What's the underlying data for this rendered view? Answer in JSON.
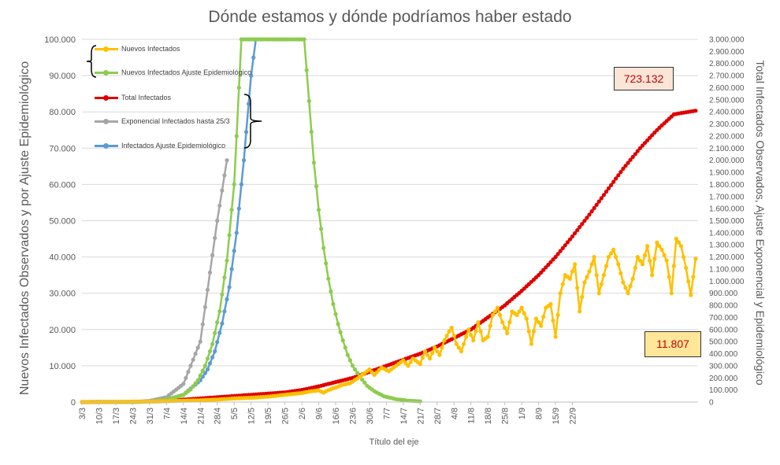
{
  "chart_data": {
    "type": "line",
    "title": "Dónde estamos y dónde podríamos haber estado",
    "xlabel": "Título del eje",
    "ylabel_left": "Nuevos Infectados Observados y por Ajuste Epidemiológico",
    "ylabel_right": "Total Infectados Observados, Ajuste Exponencial y Epidemiológico",
    "ylim_left": [
      0,
      100000
    ],
    "ylim_right": [
      0,
      3000000
    ],
    "y_ticks_left": [
      "0",
      "10.000",
      "20.000",
      "30.000",
      "40.000",
      "50.000",
      "60.000",
      "70.000",
      "80.000",
      "90.000",
      "100.000"
    ],
    "y_ticks_right": [
      "0",
      "100.000",
      "200.000",
      "300.000",
      "400.000",
      "500.000",
      "600.000",
      "700.000",
      "800.000",
      "900.000",
      "1.000.000",
      "1.100.000",
      "1.200.000",
      "1.300.000",
      "1.400.000",
      "1.500.000",
      "1.600.000",
      "1.700.000",
      "1.800.000",
      "1.900.000",
      "2.000.000",
      "2.100.000",
      "2.200.000",
      "2.300.000",
      "2.400.000",
      "2.500.000",
      "2.600.000",
      "2.700.000",
      "2.800.000",
      "2.900.000",
      "3.000.000"
    ],
    "x_tick_labels": [
      "3/3",
      "10/3",
      "17/3",
      "24/3",
      "31/3",
      "7/4",
      "14/4",
      "21/4",
      "28/4",
      "5/5",
      "12/5",
      "19/5",
      "26/5",
      "2/6",
      "9/6",
      "16/6",
      "23/6",
      "30/6",
      "7/7",
      "14/7",
      "21/7",
      "28/7",
      "4/8",
      "11/8",
      "18/8",
      "25/8",
      "1/9",
      "8/9",
      "15/9",
      "22/9"
    ],
    "grid": true,
    "legend_position": "top-left",
    "series": [
      {
        "name": "Nuevos Infectados",
        "axis": "left",
        "color": "#ffc000",
        "points": [
          [
            0,
            0
          ],
          [
            14,
            50
          ],
          [
            21,
            120
          ],
          [
            28,
            150
          ],
          [
            35,
            250
          ],
          [
            42,
            400
          ],
          [
            49,
            500
          ],
          [
            56,
            700
          ],
          [
            63,
            1000
          ],
          [
            70,
            1200
          ],
          [
            77,
            1500
          ],
          [
            84,
            2000
          ],
          [
            88,
            2300
          ],
          [
            91,
            2500
          ],
          [
            95,
            3000
          ],
          [
            98,
            3200
          ],
          [
            100,
            2600
          ],
          [
            102,
            3300
          ],
          [
            105,
            4000
          ],
          [
            108,
            4800
          ],
          [
            111,
            5200
          ],
          [
            114,
            6500
          ],
          [
            117,
            8000
          ],
          [
            119,
            9000
          ],
          [
            121,
            7500
          ],
          [
            124,
            9500
          ],
          [
            127,
            8500
          ],
          [
            130,
            10000
          ],
          [
            133,
            11500
          ],
          [
            135,
            10000
          ],
          [
            137,
            12000
          ],
          [
            140,
            10500
          ],
          [
            142,
            14000
          ],
          [
            144,
            12000
          ],
          [
            146,
            15000
          ],
          [
            148,
            13000
          ],
          [
            150,
            17000
          ],
          [
            152,
            19500
          ],
          [
            153,
            20500
          ],
          [
            155,
            16000
          ],
          [
            157,
            14000
          ],
          [
            159,
            18000
          ],
          [
            160,
            20000
          ],
          [
            162,
            17000
          ],
          [
            164,
            22000
          ],
          [
            166,
            17000
          ],
          [
            168,
            18000
          ],
          [
            170,
            24000
          ],
          [
            172,
            26000
          ],
          [
            174,
            22000
          ],
          [
            176,
            19000
          ],
          [
            178,
            25000
          ],
          [
            180,
            24000
          ],
          [
            182,
            26000
          ],
          [
            184,
            23000
          ],
          [
            186,
            16000
          ],
          [
            188,
            23000
          ],
          [
            190,
            21000
          ],
          [
            192,
            26000
          ],
          [
            194,
            27000
          ],
          [
            196,
            18000
          ],
          [
            198,
            30000
          ],
          [
            200,
            35000
          ],
          [
            202,
            34000
          ],
          [
            204,
            38000
          ],
          [
            206,
            25000
          ],
          [
            208,
            33000
          ],
          [
            210,
            36000
          ],
          [
            212,
            40000
          ],
          [
            214,
            30000
          ],
          [
            216,
            35000
          ],
          [
            218,
            40000
          ],
          [
            220,
            42000
          ],
          [
            222,
            38000
          ],
          [
            224,
            33000
          ],
          [
            226,
            30000
          ],
          [
            228,
            34000
          ],
          [
            230,
            40000
          ],
          [
            232,
            38000
          ],
          [
            234,
            43000
          ],
          [
            236,
            35000
          ],
          [
            238,
            44000
          ],
          [
            240,
            42000
          ],
          [
            242,
            39000
          ],
          [
            244,
            30000
          ],
          [
            246,
            45000
          ],
          [
            248,
            43000
          ],
          [
            250,
            37000
          ],
          [
            252,
            29500
          ],
          [
            254,
            39500
          ]
        ]
      },
      {
        "name": "Nuevos Infectados Ajuste Epidemiológico",
        "axis": "left",
        "color": "#8dcc4e",
        "points": [
          [
            0,
            0
          ],
          [
            14,
            10
          ],
          [
            21,
            30
          ],
          [
            28,
            150
          ],
          [
            35,
            600
          ],
          [
            42,
            2000
          ],
          [
            45,
            3500
          ],
          [
            48,
            6000
          ],
          [
            51,
            10000
          ],
          [
            54,
            16000
          ],
          [
            57,
            25000
          ],
          [
            60,
            39000
          ],
          [
            63,
            60000
          ],
          [
            66,
            100000
          ],
          [
            92,
            100000
          ],
          [
            94,
            83000
          ],
          [
            96,
            66000
          ],
          [
            98,
            53000
          ],
          [
            100,
            42500
          ],
          [
            102,
            34000
          ],
          [
            104,
            27000
          ],
          [
            106,
            21500
          ],
          [
            108,
            17000
          ],
          [
            110,
            13000
          ],
          [
            112,
            10000
          ],
          [
            115,
            7000
          ],
          [
            118,
            4500
          ],
          [
            121,
            3000
          ],
          [
            125,
            1600
          ],
          [
            130,
            800
          ],
          [
            135,
            400
          ],
          [
            140,
            200
          ]
        ]
      },
      {
        "name": "Total Infectados",
        "axis": "right",
        "color": "#e00000",
        "points": [
          [
            0,
            0
          ],
          [
            21,
            2000
          ],
          [
            28,
            5000
          ],
          [
            35,
            8000
          ],
          [
            42,
            20000
          ],
          [
            49,
            30000
          ],
          [
            56,
            40000
          ],
          [
            63,
            50000
          ],
          [
            70,
            60000
          ],
          [
            77,
            70000
          ],
          [
            84,
            80000
          ],
          [
            91,
            100000
          ],
          [
            98,
            130000
          ],
          [
            105,
            165000
          ],
          [
            112,
            200000
          ],
          [
            119,
            250000
          ],
          [
            126,
            300000
          ],
          [
            133,
            350000
          ],
          [
            140,
            400000
          ],
          [
            147,
            460000
          ],
          [
            154,
            530000
          ],
          [
            161,
            600000
          ],
          [
            168,
            700000
          ],
          [
            175,
            800000
          ],
          [
            182,
            920000
          ],
          [
            189,
            1050000
          ],
          [
            196,
            1200000
          ],
          [
            203,
            1370000
          ],
          [
            210,
            1550000
          ],
          [
            217,
            1740000
          ],
          [
            224,
            1930000
          ],
          [
            231,
            2100000
          ],
          [
            238,
            2250000
          ],
          [
            245,
            2380000
          ],
          [
            254,
            2410000
          ]
        ]
      },
      {
        "name": "Exponencial Infectados hasta 25/3",
        "axis": "right",
        "color": "#a6a6a6",
        "points": [
          [
            0,
            0
          ],
          [
            21,
            0
          ],
          [
            28,
            10000
          ],
          [
            35,
            40000
          ],
          [
            42,
            150000
          ],
          [
            49,
            500000
          ],
          [
            56,
            1500000
          ],
          [
            60,
            2000000
          ]
        ]
      },
      {
        "name": "Infectados Ajuste Epidemiológico",
        "axis": "right",
        "color": "#5b9bd5",
        "points": [
          [
            0,
            0
          ],
          [
            21,
            1000
          ],
          [
            28,
            5000
          ],
          [
            35,
            20000
          ],
          [
            42,
            60000
          ],
          [
            49,
            180000
          ],
          [
            52,
            270000
          ],
          [
            55,
            420000
          ],
          [
            58,
            650000
          ],
          [
            61,
            950000
          ],
          [
            64,
            1400000
          ],
          [
            67,
            2000000
          ],
          [
            70,
            2700000
          ],
          [
            72,
            3000000
          ]
        ]
      }
    ],
    "annotations": [
      {
        "text": "723.132",
        "series": "Total Infectados"
      },
      {
        "text": "11.807",
        "series": "Nuevos Infectados"
      }
    ]
  }
}
